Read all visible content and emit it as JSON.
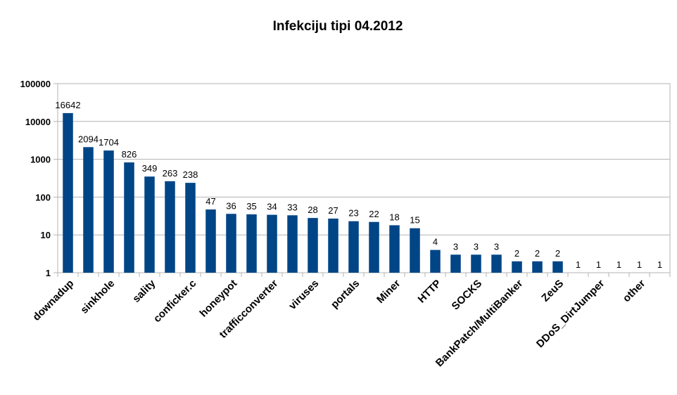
{
  "chart_data": {
    "type": "bar",
    "title": "Infekciju tipi 04.2012",
    "xlabel": "",
    "ylabel": "",
    "yscale": "log",
    "ylim": [
      1,
      100000
    ],
    "yticks": [
      "1",
      "10",
      "100",
      "1000",
      "10000",
      "100000"
    ],
    "grid": "horizontal",
    "legend": "none",
    "bar_color": "#004586",
    "categories": [
      "downadup",
      "",
      "sinkhole",
      "",
      "sality",
      "",
      "conficker.c",
      "",
      "honeypot",
      "",
      "trafficconverter",
      "",
      "viruses",
      "",
      "portals",
      "",
      "Miner",
      "",
      "HTTP",
      "",
      "SOCKS",
      "",
      "BankPatch/MultiBanker",
      "",
      "ZeuS",
      "",
      "DDoS_DirtJumper",
      "",
      "other",
      ""
    ],
    "values": [
      16642,
      2094,
      1704,
      826,
      349,
      263,
      238,
      47,
      36,
      35,
      34,
      33,
      28,
      27,
      23,
      22,
      18,
      15,
      4,
      3,
      3,
      3,
      2,
      2,
      2,
      1,
      1,
      1,
      1,
      1
    ],
    "data_labels": [
      "16642",
      "2094",
      "1704",
      "826",
      "349",
      "263",
      "238",
      "47",
      "36",
      "35",
      "34",
      "33",
      "28",
      "27",
      "23",
      "22",
      "18",
      "15",
      "4",
      "3",
      "3",
      "3",
      "2",
      "2",
      "2",
      "1",
      "1",
      "1",
      "1",
      "1"
    ]
  }
}
